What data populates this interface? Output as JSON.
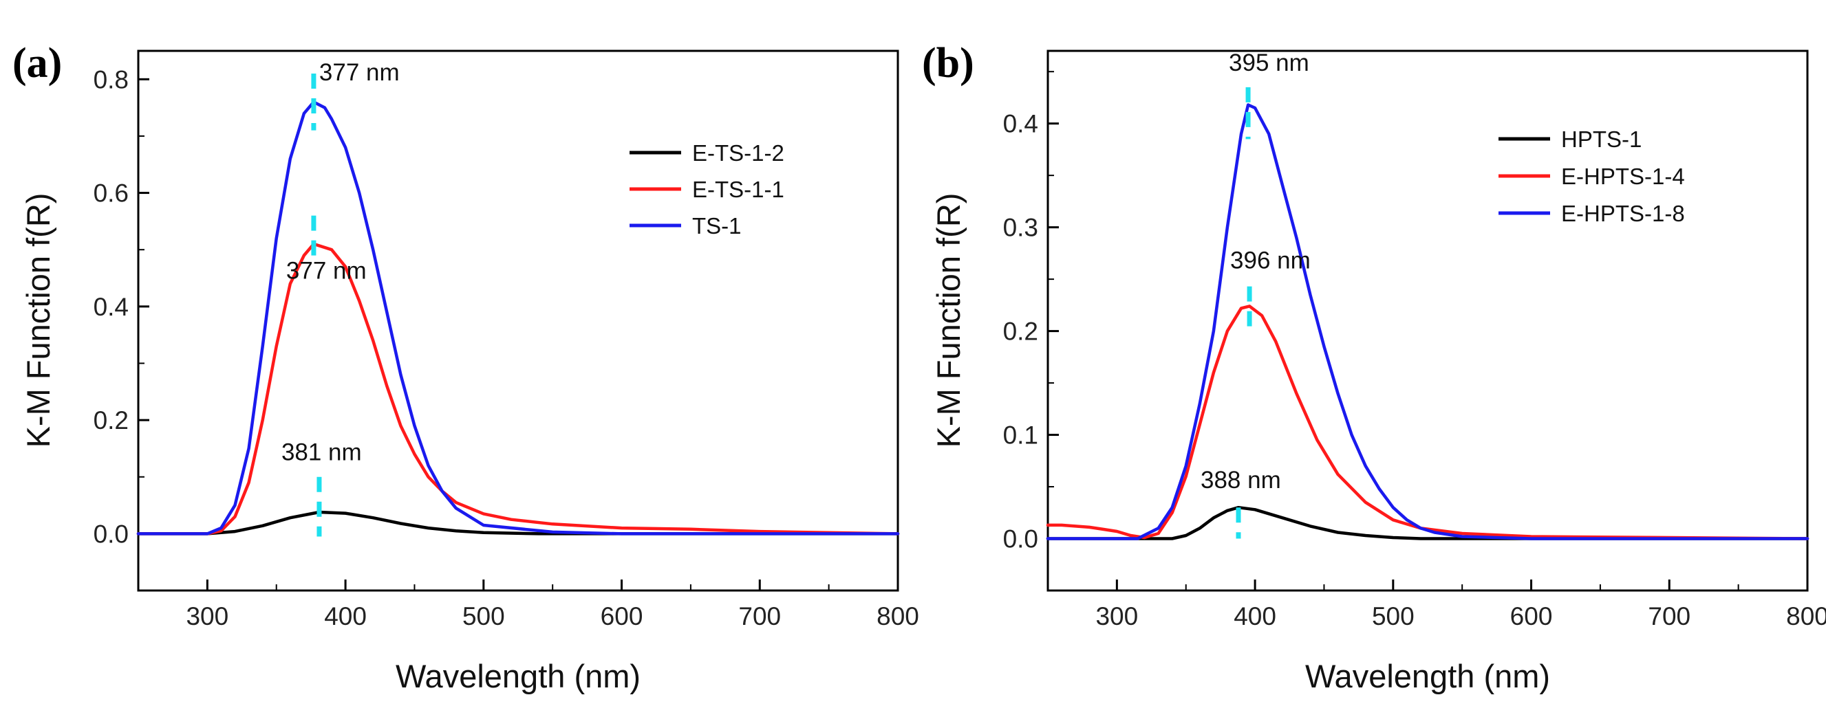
{
  "chart_data": [
    {
      "type": "line",
      "panel_label": "(a)",
      "xlabel": "Wavelength (nm)",
      "ylabel": "K-M Function f(R)",
      "xlim": [
        250,
        800
      ],
      "ylim": [
        -0.1,
        0.85
      ],
      "xticks": [
        300,
        400,
        500,
        600,
        700,
        800
      ],
      "xtick_labels": [
        "300",
        "400",
        "500",
        "600",
        "700",
        "800"
      ],
      "yticks": [
        0.0,
        0.2,
        0.4,
        0.6,
        0.8
      ],
      "ytick_labels": [
        "0.0",
        "0.2",
        "0.4",
        "0.6",
        "0.8"
      ],
      "legend_position": "top-right",
      "series": [
        {
          "name": "E-TS-1-2",
          "color": "#000000",
          "x": [
            250,
            300,
            320,
            340,
            360,
            381,
            400,
            420,
            440,
            460,
            480,
            500,
            540,
            600,
            700,
            800
          ],
          "y": [
            0,
            0,
            0.004,
            0.014,
            0.028,
            0.038,
            0.036,
            0.028,
            0.018,
            0.01,
            0.005,
            0.002,
            0,
            0,
            0,
            0
          ]
        },
        {
          "name": "E-TS-1-1",
          "color": "#ff1a1a",
          "x": [
            250,
            300,
            310,
            320,
            330,
            340,
            350,
            360,
            370,
            377,
            390,
            400,
            410,
            420,
            430,
            440,
            450,
            460,
            470,
            480,
            500,
            520,
            550,
            600,
            650,
            700,
            800
          ],
          "y": [
            0,
            0,
            0.005,
            0.03,
            0.09,
            0.2,
            0.33,
            0.44,
            0.49,
            0.51,
            0.5,
            0.47,
            0.41,
            0.34,
            0.26,
            0.19,
            0.14,
            0.1,
            0.075,
            0.055,
            0.035,
            0.025,
            0.017,
            0.01,
            0.008,
            0.004,
            0
          ]
        },
        {
          "name": "TS-1",
          "color": "#1a1aee",
          "x": [
            250,
            300,
            310,
            320,
            330,
            340,
            350,
            360,
            370,
            377,
            385,
            390,
            400,
            410,
            420,
            430,
            440,
            450,
            460,
            470,
            480,
            500,
            550,
            600,
            800
          ],
          "y": [
            0,
            0,
            0.01,
            0.05,
            0.15,
            0.33,
            0.52,
            0.66,
            0.74,
            0.76,
            0.75,
            0.73,
            0.68,
            0.6,
            0.5,
            0.39,
            0.28,
            0.19,
            0.12,
            0.075,
            0.045,
            0.015,
            0.003,
            0,
            0
          ]
        }
      ],
      "annotations": [
        {
          "text": "377 nm",
          "x": 377,
          "marker_y_range": [
            0.71,
            0.81
          ]
        },
        {
          "text": "377 nm",
          "x": 377,
          "marker_y_range": [
            0.48,
            0.56
          ]
        },
        {
          "text": "381 nm",
          "x": 381,
          "marker_y_range": [
            -0.005,
            0.1
          ]
        }
      ]
    },
    {
      "type": "line",
      "panel_label": "(b)",
      "xlabel": "Wavelength (nm)",
      "ylabel": "K-M Function f(R)",
      "xlim": [
        250,
        800
      ],
      "ylim": [
        -0.05,
        0.47
      ],
      "xticks": [
        300,
        400,
        500,
        600,
        700,
        800
      ],
      "xtick_labels": [
        "300",
        "400",
        "500",
        "600",
        "700",
        "800"
      ],
      "yticks": [
        0.0,
        0.1,
        0.2,
        0.3,
        0.4
      ],
      "ytick_labels": [
        "0.0",
        "0.1",
        "0.2",
        "0.3",
        "0.4"
      ],
      "legend_position": "top-right",
      "series": [
        {
          "name": "HPTS-1",
          "color": "#000000",
          "x": [
            250,
            340,
            350,
            360,
            370,
            380,
            388,
            400,
            420,
            440,
            460,
            480,
            500,
            520,
            550,
            800
          ],
          "y": [
            0,
            0,
            0.003,
            0.01,
            0.02,
            0.027,
            0.03,
            0.028,
            0.02,
            0.012,
            0.006,
            0.003,
            0.001,
            0,
            0,
            0
          ]
        },
        {
          "name": "E-HPTS-1-4",
          "color": "#ff1a1a",
          "x": [
            250,
            260,
            270,
            280,
            290,
            300,
            310,
            320,
            330,
            340,
            350,
            360,
            370,
            380,
            390,
            396,
            405,
            415,
            430,
            445,
            460,
            480,
            500,
            520,
            550,
            600,
            800
          ],
          "y": [
            0.013,
            0.013,
            0.012,
            0.011,
            0.009,
            0.007,
            0.003,
            0.001,
            0.005,
            0.025,
            0.06,
            0.11,
            0.16,
            0.2,
            0.222,
            0.224,
            0.215,
            0.19,
            0.14,
            0.095,
            0.062,
            0.035,
            0.018,
            0.01,
            0.005,
            0.002,
            0
          ]
        },
        {
          "name": "E-HPTS-1-8",
          "color": "#1a1aee",
          "x": [
            250,
            300,
            315,
            330,
            340,
            350,
            360,
            370,
            380,
            390,
            395,
            400,
            410,
            420,
            430,
            440,
            450,
            460,
            470,
            480,
            490,
            500,
            510,
            520,
            530,
            550,
            600,
            800
          ],
          "y": [
            0,
            0,
            0,
            0.01,
            0.03,
            0.07,
            0.13,
            0.2,
            0.3,
            0.39,
            0.418,
            0.415,
            0.39,
            0.34,
            0.29,
            0.235,
            0.185,
            0.14,
            0.1,
            0.07,
            0.048,
            0.03,
            0.018,
            0.01,
            0.006,
            0.002,
            0,
            0
          ]
        }
      ],
      "annotations": [
        {
          "text": "395 nm",
          "x": 395,
          "marker_y_range": [
            0.385,
            0.435
          ]
        },
        {
          "text": "396 nm",
          "x": 396,
          "marker_y_range": [
            0.2,
            0.243
          ]
        },
        {
          "text": "388 nm",
          "x": 388,
          "marker_y_range": [
            0.0,
            0.03
          ]
        }
      ]
    }
  ]
}
